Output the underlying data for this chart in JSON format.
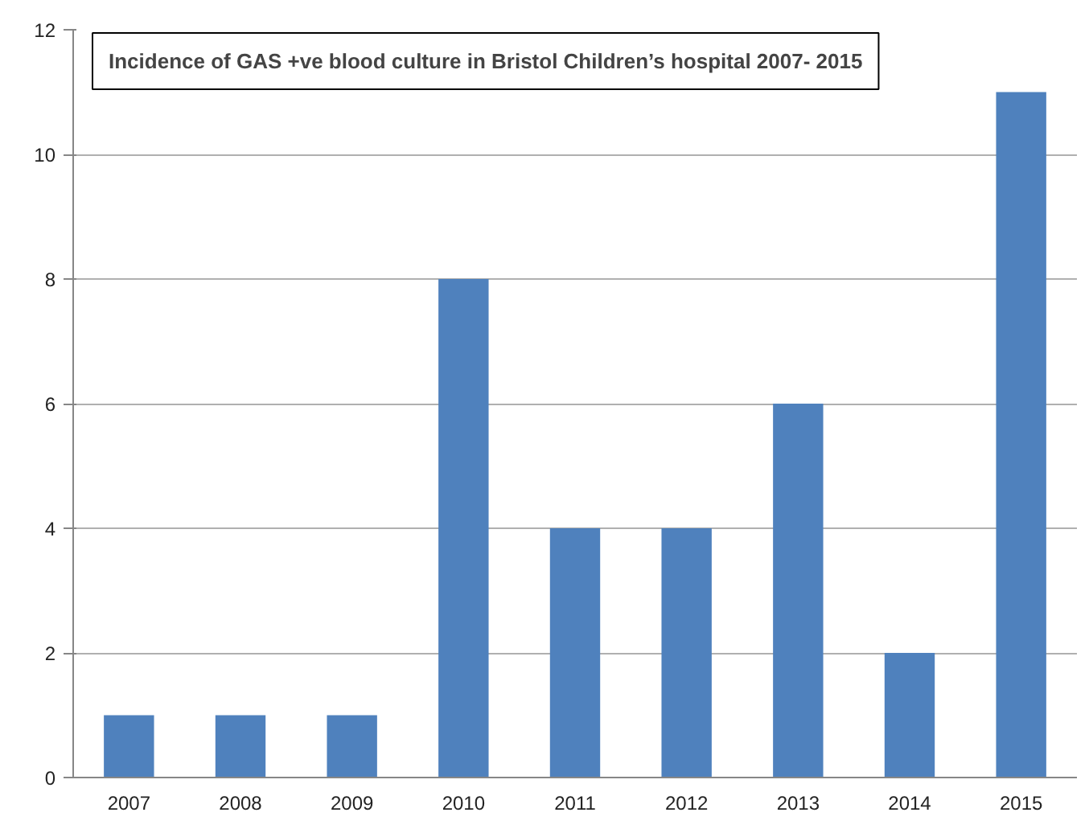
{
  "chart_data": {
    "type": "bar",
    "title": "Incidence of GAS +ve blood culture in Bristol Children’s hospital 2007- 2015",
    "categories": [
      "2007",
      "2008",
      "2009",
      "2010",
      "2011",
      "2012",
      "2013",
      "2014",
      "2015"
    ],
    "values": [
      1,
      1,
      1,
      8,
      4,
      4,
      6,
      2,
      11
    ],
    "color": "#4f81bd",
    "ylim": [
      0,
      12
    ],
    "yticks": [
      0,
      2,
      4,
      6,
      8,
      10,
      12
    ],
    "grid": "y"
  }
}
